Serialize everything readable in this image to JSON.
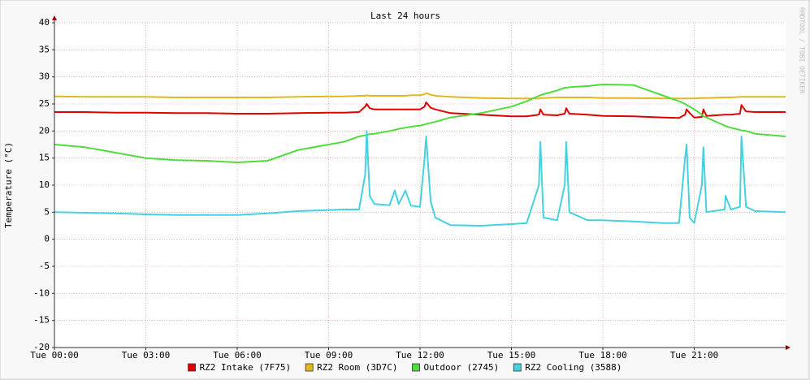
{
  "chart_data": {
    "type": "line",
    "title": "Last 24 hours",
    "y_label": "Temperature (°C)",
    "watermark": "RRDTOOL / TOBI OETIKER",
    "x": [
      0,
      1,
      2,
      3,
      4,
      5,
      6,
      7,
      8,
      9,
      9.5,
      10,
      10.2,
      10.25,
      10.35,
      10.5,
      11,
      11.17,
      11.3,
      11.52,
      11.7,
      12,
      12.15,
      12.2,
      12.35,
      12.5,
      13,
      14,
      15,
      15.5,
      15.9,
      15.95,
      16.05,
      16.5,
      16.75,
      16.8,
      16.9,
      17.5,
      18,
      19,
      20,
      20.5,
      20.7,
      20.75,
      20.85,
      21,
      21.25,
      21.3,
      21.4,
      22,
      22.03,
      22.2,
      22.5,
      22.55,
      22.7,
      23,
      24
    ],
    "xlim": [
      0,
      24
    ],
    "xticks": [
      {
        "value": 0,
        "label": "Tue 00:00"
      },
      {
        "value": 3,
        "label": "Tue 03:00"
      },
      {
        "value": 6,
        "label": "Tue 06:00"
      },
      {
        "value": 9,
        "label": "Tue 09:00"
      },
      {
        "value": 12,
        "label": "Tue 12:00"
      },
      {
        "value": 15,
        "label": "Tue 15:00"
      },
      {
        "value": 18,
        "label": "Tue 18:00"
      },
      {
        "value": 21,
        "label": "Tue 21:00"
      }
    ],
    "ylim": [
      -20,
      40
    ],
    "yticks": [
      -20,
      -15,
      -10,
      -5,
      0,
      5,
      10,
      15,
      20,
      25,
      30,
      35,
      40
    ],
    "grid": true,
    "legend": "bottom",
    "series": [
      {
        "name": "RZ2 Intake (7F75)",
        "color": "#e00000",
        "values": [
          23.5,
          23.5,
          23.4,
          23.4,
          23.3,
          23.3,
          23.2,
          23.2,
          23.3,
          23.4,
          23.4,
          23.5,
          24.5,
          25,
          24.2,
          24,
          24,
          24,
          24,
          24,
          24,
          24,
          24.5,
          25.3,
          24.3,
          24,
          23.3,
          23,
          22.7,
          22.7,
          23,
          24,
          23,
          22.9,
          23.2,
          24.2,
          23.2,
          23,
          22.8,
          22.7,
          22.5,
          22.4,
          23,
          24,
          23.3,
          22.5,
          22.6,
          24,
          22.8,
          23,
          23,
          23,
          23.2,
          24.8,
          23.6,
          23.5,
          23.5
        ]
      },
      {
        "name": "RZ2 Room (3D7C)",
        "color": "#e0b820",
        "values": [
          26.4,
          26.3,
          26.3,
          26.3,
          26.2,
          26.2,
          26.2,
          26.2,
          26.3,
          26.4,
          26.4,
          26.5,
          26.5,
          26.6,
          26.5,
          26.5,
          26.5,
          26.5,
          26.5,
          26.5,
          26.6,
          26.6,
          26.8,
          27,
          26.7,
          26.5,
          26.3,
          26.1,
          26,
          26,
          26,
          26.1,
          26.1,
          26.2,
          26.2,
          26.2,
          26.2,
          26.2,
          26.1,
          26.1,
          26,
          26,
          26,
          26,
          26,
          26,
          26.1,
          26.1,
          26.1,
          26.2,
          26.2,
          26.2,
          26.3,
          26.3,
          26.3,
          26.3,
          26.3
        ]
      },
      {
        "name": "Outdoor (2745)",
        "color": "#50dc3c",
        "values": [
          17.5,
          17,
          16,
          15,
          14.6,
          14.5,
          14.2,
          14.5,
          16.5,
          17.5,
          18,
          19,
          19.2,
          19.3,
          19.4,
          19.5,
          20,
          20.2,
          20.4,
          20.6,
          20.8,
          21,
          21.2,
          21.3,
          21.5,
          21.7,
          22.5,
          23.3,
          24.5,
          25.5,
          26.5,
          26.6,
          26.8,
          27.5,
          28,
          28,
          28.1,
          28.3,
          28.6,
          28.5,
          26.5,
          25.5,
          25,
          24.8,
          24.5,
          24,
          23,
          22.7,
          22.5,
          21,
          20.9,
          20.6,
          20.2,
          20.1,
          20,
          19.5,
          19
        ]
      },
      {
        "name": "RZ2 Cooling (3588)",
        "color": "#44d2e0",
        "values": [
          5,
          4.9,
          4.8,
          4.6,
          4.5,
          4.5,
          4.5,
          4.8,
          5.2,
          5.4,
          5.5,
          5.5,
          12,
          20,
          8,
          6.5,
          6.3,
          9,
          6.5,
          9,
          6.2,
          6,
          15,
          19,
          7,
          4,
          2.6,
          2.5,
          2.8,
          3,
          10,
          18,
          4,
          3.5,
          10,
          18,
          5,
          3.5,
          3.5,
          3.3,
          3,
          3,
          15,
          17.5,
          4,
          3,
          10,
          17,
          5,
          5.5,
          8,
          5.5,
          6,
          19,
          6,
          5.2,
          5
        ]
      }
    ]
  }
}
